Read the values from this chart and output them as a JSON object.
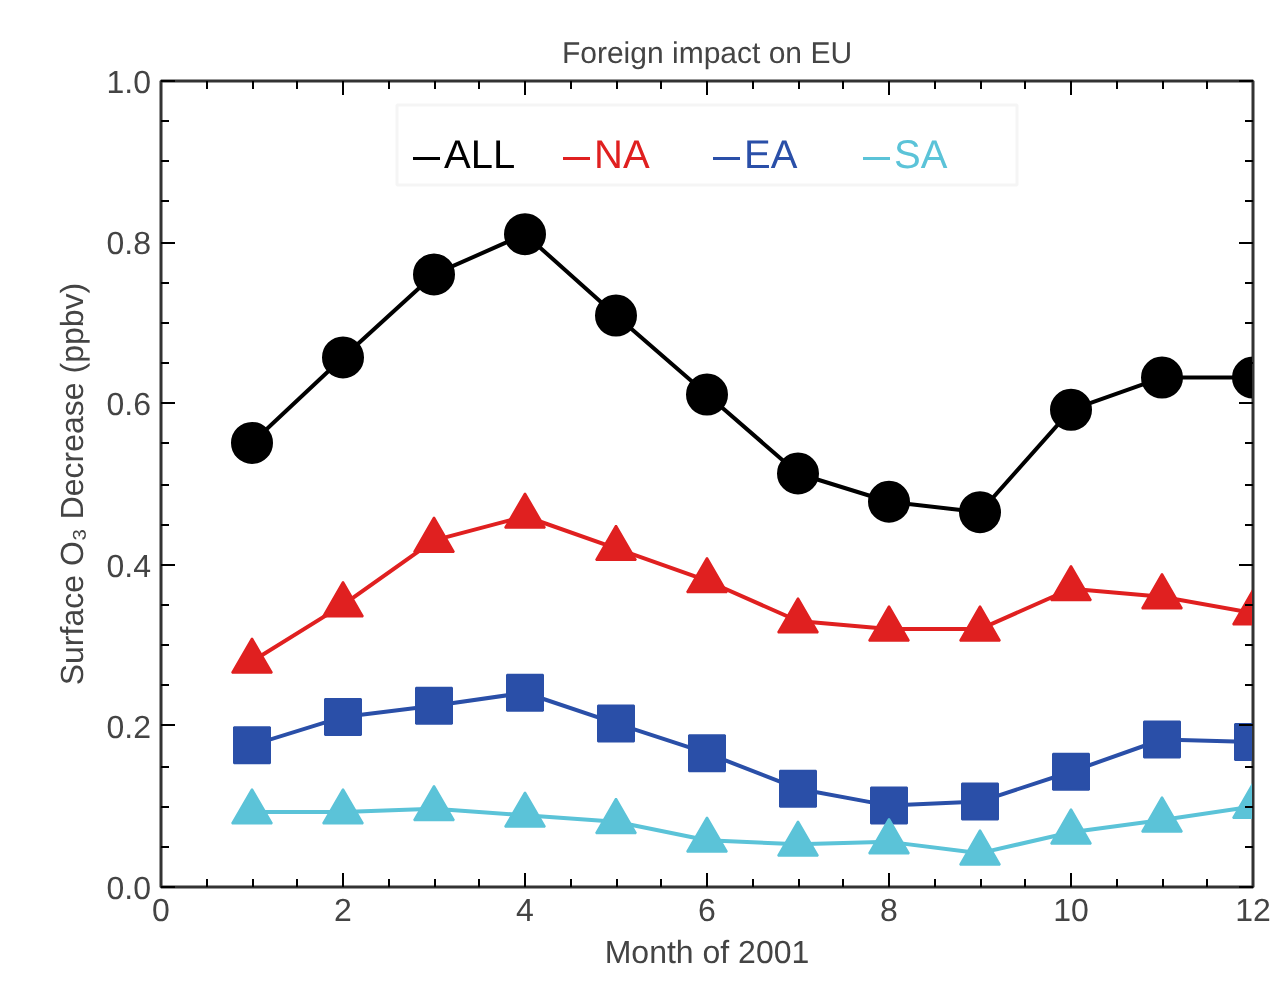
{
  "chart_data": {
    "type": "line",
    "title": "Foreign impact on EU",
    "xlabel": "Month of 2001",
    "ylabel": "Surface O₃ Decrease (ppbv)",
    "x": [
      1,
      2,
      3,
      4,
      5,
      6,
      7,
      8,
      9,
      10,
      11,
      12
    ],
    "series": [
      {
        "name": "ALL",
        "color": "#000000",
        "marker": "circle",
        "values": [
          0.551,
          0.657,
          0.76,
          0.81,
          0.709,
          0.611,
          0.513,
          0.478,
          0.465,
          0.592,
          0.632,
          0.632
        ]
      },
      {
        "name": "NA",
        "color": "#e02020",
        "marker": "triangle",
        "values": [
          0.28,
          0.35,
          0.43,
          0.46,
          0.42,
          0.38,
          0.33,
          0.32,
          0.32,
          0.37,
          0.36,
          0.34
        ]
      },
      {
        "name": "EA",
        "color": "#2a4fa8",
        "marker": "square",
        "values": [
          0.176,
          0.211,
          0.225,
          0.241,
          0.203,
          0.166,
          0.122,
          0.101,
          0.106,
          0.143,
          0.183,
          0.18
        ]
      },
      {
        "name": "SA",
        "color": "#5bc3d8",
        "marker": "triangle",
        "values": [
          0.093,
          0.093,
          0.097,
          0.089,
          0.081,
          0.058,
          0.053,
          0.056,
          0.042,
          0.068,
          0.083,
          0.1
        ]
      }
    ],
    "xlim": [
      0,
      12
    ],
    "xticks": [
      0,
      2,
      4,
      6,
      8,
      10,
      12
    ],
    "ylim": [
      0,
      1
    ],
    "yticks": [
      {
        "value": 0,
        "label": "0.0"
      },
      {
        "value": 0.2,
        "label": "0.2"
      },
      {
        "value": 0.4,
        "label": "0.4"
      },
      {
        "value": 0.6,
        "label": "0.6"
      },
      {
        "value": 0.8,
        "label": "0.8"
      },
      {
        "value": 1,
        "label": "1.0"
      }
    ],
    "legend": "top",
    "grid": false,
    "line_style": "solid"
  }
}
